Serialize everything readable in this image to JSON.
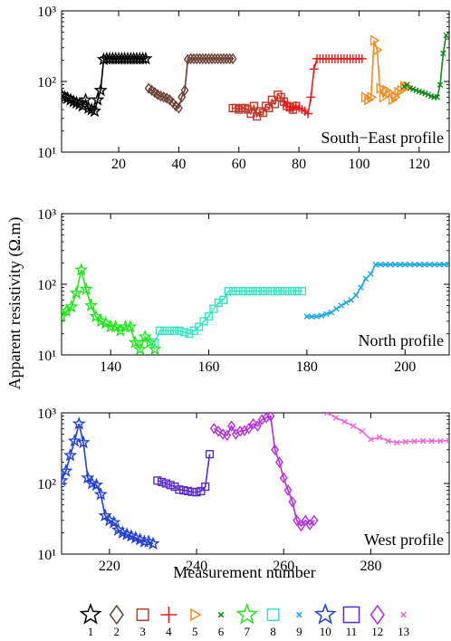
{
  "chart_data": {
    "type": "line",
    "ylabel": "Apparent resistivity (Ω.m)",
    "xlabel": "Measurement number",
    "y_scale": "log",
    "ylim": [
      10,
      1000
    ],
    "y_ticks": [
      {
        "v": 10,
        "label": "10¹"
      },
      {
        "v": 100,
        "label": "10²"
      },
      {
        "v": 1000,
        "label": "10³"
      }
    ],
    "legend": {
      "placement": "bottom",
      "items": [
        {
          "id": "1",
          "marker": "star",
          "color": "#000000"
        },
        {
          "id": "2",
          "marker": "diamond",
          "color": "#6b3e32"
        },
        {
          "id": "3",
          "marker": "square",
          "color": "#c0392b"
        },
        {
          "id": "4",
          "marker": "plus",
          "color": "#e41a1c"
        },
        {
          "id": "5",
          "marker": "triangle-right",
          "color": "#f28c1e"
        },
        {
          "id": "6",
          "marker": "x",
          "color": "#138a1c"
        },
        {
          "id": "7",
          "marker": "star",
          "color": "#22e51c"
        },
        {
          "id": "8",
          "marker": "square",
          "color": "#33e6c0"
        },
        {
          "id": "9",
          "marker": "x",
          "color": "#1aa7e8"
        },
        {
          "id": "10",
          "marker": "star",
          "color": "#1f3fd6"
        },
        {
          "id": "11",
          "marker": "square",
          "color": "#5a2bc8"
        },
        {
          "id": "12",
          "marker": "diamond",
          "color": "#b62be0"
        },
        {
          "id": "13",
          "marker": "x",
          "color": "#ee66d6"
        }
      ]
    },
    "panels": [
      {
        "title": "South−East profile",
        "xlim": [
          1,
          130
        ],
        "x_ticks": [
          20,
          40,
          60,
          80,
          100,
          120
        ],
        "series": [
          {
            "legend_id": "1",
            "x": [
              1,
              2,
              3,
              4,
              5,
              6,
              7,
              8,
              9,
              10,
              11,
              12,
              13,
              14,
              15,
              16,
              17,
              18,
              19,
              20,
              21,
              22,
              23,
              24,
              25,
              26,
              27,
              28,
              29
            ],
            "y": [
              65,
              60,
              58,
              55,
              52,
              50,
              48,
              45,
              55,
              42,
              40,
              38,
              55,
              75,
              205,
              210,
              210,
              210,
              210,
              210,
              210,
              210,
              210,
              210,
              210,
              210,
              210,
              210,
              210
            ]
          },
          {
            "legend_id": "2",
            "x": [
              30,
              31,
              32,
              33,
              34,
              35,
              36,
              37,
              38,
              39,
              40,
              41,
              42,
              43,
              44,
              45,
              46,
              47,
              48,
              49,
              50,
              51,
              52,
              53,
              54,
              55,
              56,
              57,
              58
            ],
            "y": [
              80,
              75,
              70,
              65,
              62,
              60,
              58,
              55,
              50,
              45,
              42,
              60,
              75,
              205,
              210,
              210,
              210,
              210,
              210,
              210,
              210,
              210,
              210,
              210,
              210,
              210,
              210,
              210,
              210
            ]
          },
          {
            "legend_id": "3",
            "x": [
              58,
              59,
              60,
              61,
              62,
              63,
              64,
              65,
              66,
              67,
              68,
              69,
              70,
              71,
              72,
              73,
              74,
              75,
              76,
              77,
              78,
              79
            ],
            "y": [
              42,
              42,
              40,
              42,
              42,
              40,
              35,
              45,
              32,
              38,
              36,
              45,
              42,
              55,
              48,
              65,
              60,
              52,
              45,
              43,
              40,
              45
            ]
          },
          {
            "legend_id": "4",
            "x": [
              75,
              76,
              77,
              78,
              79,
              80,
              81,
              82,
              83,
              84,
              85,
              86,
              87,
              88,
              89,
              90,
              91,
              92,
              93,
              94,
              95,
              96,
              97,
              98,
              99,
              100,
              101
            ],
            "y": [
              52,
              45,
              43,
              40,
              45,
              42,
              40,
              38,
              35,
              60,
              150,
              210,
              210,
              210,
              210,
              210,
              210,
              210,
              210,
              210,
              210,
              210,
              210,
              210,
              210,
              210,
              210
            ]
          },
          {
            "legend_id": "5",
            "x": [
              102,
              103,
              104,
              105,
              106,
              107,
              108,
              109,
              110,
              111,
              112,
              113,
              114,
              115,
              116
            ],
            "y": [
              60,
              55,
              60,
              380,
              280,
              80,
              60,
              75,
              70,
              55,
              60,
              70,
              75,
              85,
              85
            ]
          },
          {
            "legend_id": "6",
            "x": [
              115,
              116,
              117,
              118,
              119,
              120,
              121,
              122,
              123,
              124,
              125,
              126,
              127,
              128,
              129
            ],
            "y": [
              85,
              90,
              80,
              78,
              75,
              72,
              70,
              68,
              65,
              62,
              60,
              60,
              90,
              250,
              450
            ]
          }
        ]
      },
      {
        "title": "North profile",
        "xlim": [
          130,
          209
        ],
        "x_ticks": [
          140,
          160,
          180,
          200
        ],
        "series": [
          {
            "legend_id": "7",
            "x": [
              130,
              131,
              132,
              133,
              134,
              135,
              136,
              137,
              138,
              139,
              140,
              141,
              142,
              143,
              144,
              145,
              146,
              147,
              148,
              149
            ],
            "y": [
              35,
              42,
              48,
              75,
              160,
              85,
              50,
              35,
              30,
              28,
              25,
              25,
              22,
              25,
              25,
              15,
              12,
              18,
              15,
              12
            ]
          },
          {
            "legend_id": "8",
            "x": [
              149,
              150,
              151,
              152,
              153,
              154,
              155,
              156,
              157,
              158,
              159,
              160,
              161,
              162,
              163,
              164,
              165,
              166,
              167,
              168,
              169,
              170,
              171,
              172,
              173,
              174,
              175,
              176,
              177,
              178,
              179
            ],
            "y": [
              15,
              22,
              22,
              22,
              22,
              22,
              21,
              20,
              22,
              25,
              30,
              35,
              45,
              55,
              60,
              80,
              80,
              80,
              80,
              80,
              80,
              80,
              80,
              80,
              80,
              80,
              80,
              80,
              80,
              80,
              80
            ]
          },
          {
            "legend_id": "9",
            "x": [
              180,
              181,
              182,
              183,
              184,
              185,
              186,
              187,
              188,
              189,
              190,
              191,
              192,
              193,
              194,
              195,
              196,
              197,
              198,
              199,
              200,
              201,
              202,
              203,
              204,
              205,
              206,
              207,
              208,
              209
            ],
            "y": [
              35,
              35,
              35,
              36,
              38,
              40,
              45,
              50,
              55,
              60,
              70,
              90,
              120,
              140,
              190,
              190,
              190,
              190,
              190,
              190,
              190,
              190,
              190,
              190,
              190,
              190,
              190,
              190,
              190,
              190
            ]
          }
        ]
      },
      {
        "title": "West profile",
        "xlim": [
          209,
          298
        ],
        "x_ticks": [
          220,
          240,
          260,
          280
        ],
        "series": [
          {
            "legend_id": "10",
            "x": [
              209,
              210,
              211,
              212,
              213,
              214,
              215,
              216,
              217,
              218,
              219,
              220,
              221,
              222,
              223,
              224,
              225,
              226,
              227,
              228,
              229,
              230
            ],
            "y": [
              110,
              150,
              250,
              400,
              700,
              380,
              120,
              100,
              95,
              70,
              35,
              30,
              28,
              22,
              20,
              19,
              18,
              17,
              16,
              15,
              15,
              14
            ]
          },
          {
            "legend_id": "11",
            "x": [
              231,
              232,
              233,
              234,
              235,
              236,
              237,
              238,
              239,
              240,
              241,
              242,
              243
            ],
            "y": [
              110,
              105,
              100,
              95,
              90,
              82,
              80,
              78,
              76,
              75,
              78,
              90,
              260
            ]
          },
          {
            "legend_id": "12",
            "x": [
              244,
              245,
              246,
              247,
              248,
              249,
              250,
              251,
              252,
              253,
              254,
              255,
              256,
              257,
              258,
              259,
              260,
              261,
              262,
              263,
              264,
              265,
              266,
              267
            ],
            "y": [
              600,
              550,
              500,
              480,
              650,
              500,
              550,
              560,
              600,
              700,
              650,
              800,
              850,
              900,
              300,
              200,
              120,
              80,
              55,
              30,
              25,
              30,
              26,
              30
            ]
          },
          {
            "legend_id": "13",
            "x": [
              268,
              270,
              272,
              274,
              276,
              278,
              280,
              282,
              284,
              286,
              288,
              290,
              292,
              294,
              296,
              298
            ],
            "y": [
              1200,
              1000,
              850,
              750,
              650,
              550,
              420,
              450,
              400,
              380,
              390,
              395,
              400,
              400,
              400,
              405
            ]
          }
        ]
      }
    ]
  }
}
